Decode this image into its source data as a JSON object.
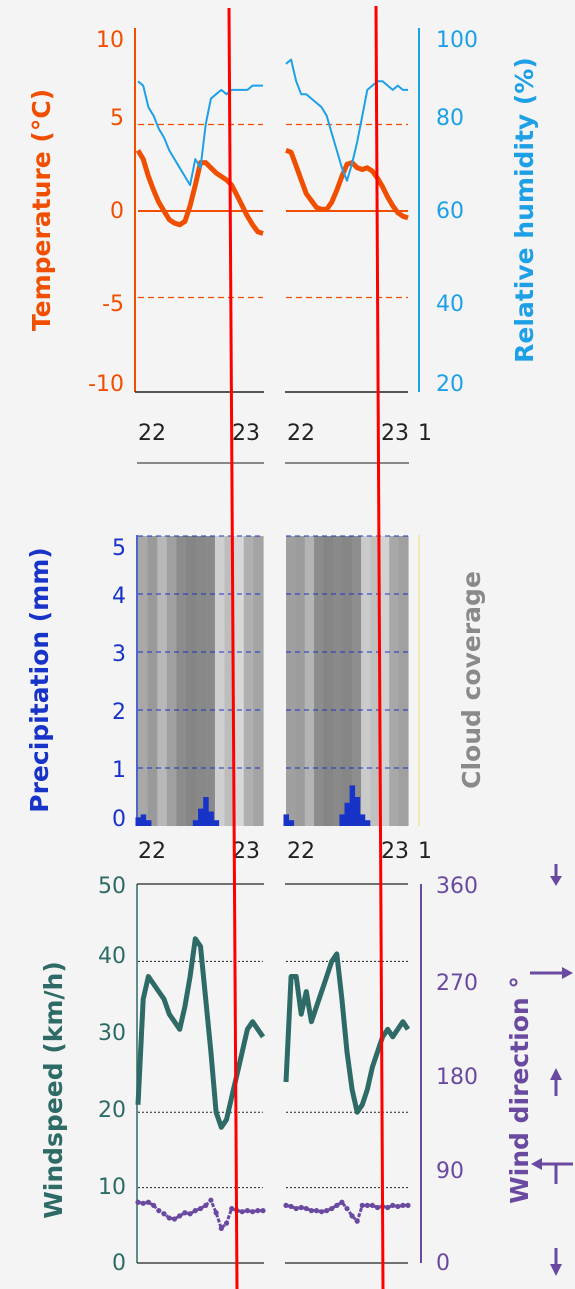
{
  "colors": {
    "temperature": "#f04e00",
    "humidity": "#1ea0e6",
    "precipitation": "#1833c8",
    "cloud": "#8a8a8a",
    "windspeed": "#2e6b66",
    "direction": "#6a4aa0",
    "overlay_line": "#ff0000"
  },
  "x_tick_labels": [
    "22",
    "23",
    "22",
    "23",
    "1"
  ],
  "chart_data": [
    {
      "type": "line",
      "ylabel": "Temperature (°C)",
      "ylabel2": "Relative humidity (%)",
      "ylim": [
        -10,
        10
      ],
      "ylim2": [
        20,
        100
      ],
      "yticks": [
        10,
        5,
        0,
        -5,
        -10
      ],
      "yticks2": [
        100,
        80,
        60,
        40,
        20
      ],
      "series": [
        {
          "axis": "left",
          "panel": 1,
          "x": [
            22.0,
            22.05,
            22.1,
            22.15,
            22.2,
            22.25,
            22.3,
            22.35,
            22.4,
            22.45,
            22.5,
            22.55,
            22.6,
            22.65,
            22.7,
            22.75,
            22.8,
            22.85,
            22.9,
            22.95,
            23.0,
            23.05,
            23.1,
            23.15,
            23.2
          ],
          "y": [
            3.5,
            3.0,
            2.0,
            1.2,
            0.5,
            0.0,
            -0.5,
            -0.7,
            -0.8,
            -0.6,
            0.3,
            1.5,
            2.8,
            2.8,
            2.5,
            2.2,
            2.0,
            1.8,
            1.5,
            0.9,
            0.3,
            -0.3,
            -0.8,
            -1.2,
            -1.3
          ]
        },
        {
          "axis": "left",
          "panel": 2,
          "x": [
            22.0,
            22.05,
            22.1,
            22.15,
            22.2,
            22.25,
            22.3,
            22.35,
            22.4,
            22.45,
            22.5,
            22.55,
            22.6,
            22.65,
            22.7,
            22.75,
            22.8,
            22.85,
            22.9,
            22.95,
            23.0,
            23.05,
            23.1,
            23.15,
            23.2
          ],
          "y": [
            3.5,
            3.4,
            2.6,
            1.8,
            1.0,
            0.6,
            0.2,
            0.1,
            0.1,
            0.5,
            1.2,
            2.0,
            2.7,
            2.8,
            2.5,
            2.4,
            2.5,
            2.3,
            1.9,
            1.4,
            0.8,
            0.3,
            -0.1,
            -0.3,
            -0.4
          ]
        },
        {
          "axis": "right",
          "panel": 1,
          "x": [
            22.0,
            22.05,
            22.1,
            22.15,
            22.2,
            22.25,
            22.3,
            22.35,
            22.4,
            22.45,
            22.5,
            22.55,
            22.6,
            22.65,
            22.7,
            22.75,
            22.8,
            22.85,
            22.9,
            22.95,
            23.0,
            23.05,
            23.1,
            23.15,
            23.2
          ],
          "y": [
            90,
            89,
            84,
            82,
            79,
            77,
            74,
            72,
            70,
            68,
            66,
            72,
            70,
            80,
            86,
            87,
            88,
            87,
            88,
            88,
            88,
            88,
            89,
            89,
            89
          ]
        },
        {
          "axis": "right",
          "panel": 2,
          "x": [
            22.0,
            22.05,
            22.1,
            22.15,
            22.2,
            22.25,
            22.3,
            22.35,
            22.4,
            22.45,
            22.5,
            22.55,
            22.6,
            22.65,
            22.7,
            22.75,
            22.8,
            22.85,
            22.9,
            22.95,
            23.0,
            23.05,
            23.1,
            23.15,
            23.2
          ],
          "y": [
            94,
            95,
            90,
            87,
            87,
            86,
            85,
            84,
            82,
            78,
            74,
            70,
            67,
            71,
            76,
            82,
            88,
            89,
            90,
            90,
            89,
            88,
            89,
            88,
            88
          ]
        }
      ]
    },
    {
      "type": "bar",
      "ylabel": "Precipitation (mm)",
      "ylabel2": "Cloud coverage",
      "ylim": [
        0,
        5
      ],
      "yticks": [
        5,
        4,
        3,
        2,
        1,
        0
      ],
      "series": [
        {
          "panel": 1,
          "x": [
            22.0,
            22.05,
            22.1,
            22.55,
            22.6,
            22.65,
            22.7,
            22.75
          ],
          "y": [
            0.15,
            0.2,
            0.1,
            0.1,
            0.3,
            0.5,
            0.25,
            0.1
          ]
        },
        {
          "panel": 2,
          "x": [
            22.0,
            22.05,
            22.55,
            22.6,
            22.65,
            22.7,
            22.75,
            22.8
          ],
          "y": [
            0.2,
            0.1,
            0.2,
            0.4,
            0.7,
            0.5,
            0.2,
            0.1
          ]
        }
      ]
    },
    {
      "type": "line",
      "ylabel": "Windspeed (km/h)",
      "ylabel2": "Wind direction °",
      "ylim": [
        0,
        50
      ],
      "ylim2": [
        0,
        360
      ],
      "yticks": [
        50,
        40,
        30,
        20,
        10,
        0
      ],
      "yticks2": [
        360,
        270,
        180,
        90,
        0
      ],
      "series": [
        {
          "axis": "left",
          "panel": 1,
          "x": [
            22.0,
            22.05,
            22.1,
            22.15,
            22.2,
            22.25,
            22.3,
            22.35,
            22.4,
            22.45,
            22.5,
            22.55,
            22.6,
            22.65,
            22.7,
            22.75,
            22.8,
            22.85,
            22.9,
            22.95,
            23.0,
            23.05,
            23.1,
            23.15,
            23.2
          ],
          "y": [
            21,
            35,
            38,
            37,
            36,
            35,
            33,
            32,
            31,
            34,
            38,
            43,
            42,
            35,
            28,
            20,
            18,
            19,
            22,
            25,
            28,
            31,
            32,
            31,
            30
          ]
        },
        {
          "axis": "left",
          "panel": 2,
          "x": [
            22.0,
            22.05,
            22.1,
            22.15,
            22.2,
            22.25,
            22.3,
            22.35,
            22.4,
            22.45,
            22.5,
            22.55,
            22.6,
            22.65,
            22.7,
            22.75,
            22.8,
            22.85,
            22.9,
            22.95,
            23.0,
            23.05,
            23.1,
            23.15,
            23.2
          ],
          "y": [
            24,
            38,
            38,
            33,
            36,
            32,
            34,
            36,
            38,
            40,
            41,
            35,
            28,
            23,
            20,
            21,
            23,
            26,
            28,
            30,
            31,
            30,
            31,
            32,
            31
          ]
        },
        {
          "axis": "right",
          "panel": 1,
          "x": [
            22.0,
            22.05,
            22.1,
            22.15,
            22.2,
            22.25,
            22.3,
            22.35,
            22.4,
            22.45,
            22.5,
            22.55,
            22.6,
            22.65,
            22.7,
            22.75,
            22.8,
            22.85,
            22.9,
            22.95,
            23.0,
            23.05,
            23.1,
            23.15,
            23.2
          ],
          "y": [
            58,
            57,
            58,
            55,
            50,
            47,
            43,
            42,
            45,
            48,
            47,
            50,
            52,
            55,
            60,
            48,
            33,
            38,
            52,
            50,
            49,
            50,
            49,
            50,
            50
          ]
        },
        {
          "axis": "right",
          "panel": 2,
          "x": [
            22.0,
            22.05,
            22.1,
            22.15,
            22.2,
            22.25,
            22.3,
            22.35,
            22.4,
            22.45,
            22.5,
            22.55,
            22.6,
            22.65,
            22.7,
            22.75,
            22.8,
            22.85,
            22.9,
            22.95,
            23.0,
            23.05,
            23.1,
            23.15,
            23.2
          ],
          "y": [
            55,
            54,
            52,
            53,
            52,
            50,
            50,
            49,
            50,
            52,
            55,
            58,
            52,
            45,
            40,
            55,
            55,
            55,
            53,
            54,
            53,
            55,
            54,
            55,
            55
          ]
        }
      ]
    }
  ]
}
